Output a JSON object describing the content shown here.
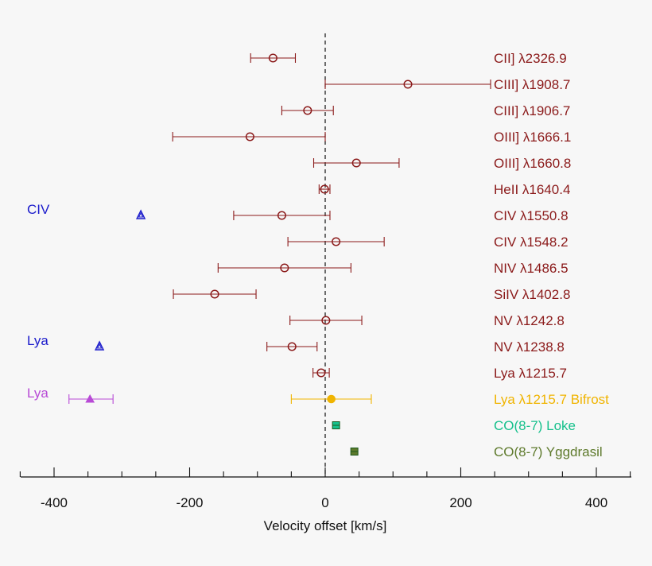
{
  "chart_data": {
    "type": "scatter",
    "title": "",
    "xlabel": "Velocity offset [km/s]",
    "ylabel": "",
    "xlim": [
      -450,
      450
    ],
    "xticks": [
      "-400",
      "-200",
      "0",
      "200",
      "400"
    ],
    "grid": false,
    "colors": {
      "dark_red": "#8b1a1a",
      "blue": "#1c1ccc",
      "purple": "#b84ad6",
      "orange": "#f0b400",
      "teal": "#16c08c",
      "green": "#2e8b2e",
      "olive": "#5e7a2c"
    },
    "series": [
      {
        "name": "CII] λ2326.9",
        "x": -77,
        "xerr": [
          33,
          33
        ],
        "marker": "circle",
        "color": "#8b1a1a"
      },
      {
        "name": "CIII] λ1908.7",
        "x": 122,
        "xerr": [
          122,
          122
        ],
        "marker": "circle",
        "color": "#8b1a1a"
      },
      {
        "name": "CIII] λ1906.7",
        "x": -26,
        "xerr": [
          38,
          38
        ],
        "marker": "circle",
        "color": "#8b1a1a"
      },
      {
        "name": "OIII] λ1666.1",
        "x": -111,
        "xerr": [
          114,
          111
        ],
        "marker": "circle",
        "color": "#8b1a1a"
      },
      {
        "name": "OIII] λ1660.8",
        "x": 46,
        "xerr": [
          63,
          63
        ],
        "marker": "circle",
        "color": "#8b1a1a"
      },
      {
        "name": "HeII λ1640.4",
        "x": -1,
        "xerr": [
          8,
          8
        ],
        "marker": "circle",
        "color": "#8b1a1a"
      },
      {
        "name": "CIV λ1550.8",
        "x": -64,
        "xerr": [
          71,
          71
        ],
        "marker": "circle",
        "color": "#8b1a1a"
      },
      {
        "name": "CIV λ1548.2",
        "x": 16,
        "xerr": [
          71,
          71
        ],
        "marker": "circle",
        "color": "#8b1a1a"
      },
      {
        "name": "NIV λ1486.5",
        "x": -60,
        "xerr": [
          98,
          98
        ],
        "marker": "circle",
        "color": "#8b1a1a"
      },
      {
        "name": "SiIV λ1402.8",
        "x": -163,
        "xerr": [
          61,
          61
        ],
        "marker": "circle",
        "color": "#8b1a1a"
      },
      {
        "name": "NV λ1242.8",
        "x": 1,
        "xerr": [
          53,
          53
        ],
        "marker": "circle",
        "color": "#8b1a1a"
      },
      {
        "name": "NV λ1238.8",
        "x": -49,
        "xerr": [
          37,
          37
        ],
        "marker": "circle",
        "color": "#8b1a1a"
      },
      {
        "name": "Lya λ1215.7",
        "x": -6,
        "xerr": [
          12,
          12
        ],
        "marker": "circle",
        "color": "#8b1a1a"
      },
      {
        "name": "Lya λ1215.7 Bifrost",
        "x": 9,
        "xerr": [
          59,
          59
        ],
        "marker": "filled-circle",
        "color": "#f0b400"
      },
      {
        "name": "CO(8-7) Loke",
        "x": 16,
        "xerr": [
          0,
          0
        ],
        "marker": "square",
        "color": "#16c08c"
      },
      {
        "name": "CO(8-7) Yggdrasil",
        "x": 43,
        "xerr": [
          0,
          0
        ],
        "marker": "square",
        "color": "#5e7a2c"
      }
    ],
    "left_points": [
      {
        "label": "CIV",
        "row": 6,
        "x": -272,
        "xerr": [
          0,
          0
        ],
        "marker": "double-triangle",
        "color": "#1c1ccc"
      },
      {
        "label": "Lya",
        "row": 11,
        "x": -333,
        "xerr": [
          0,
          0
        ],
        "marker": "double-triangle",
        "color": "#1c1ccc"
      },
      {
        "label": "Lya",
        "row": 13,
        "x": -347,
        "xerr": [
          31,
          34
        ],
        "marker": "filled-triangle",
        "color": "#b84ad6"
      }
    ]
  }
}
